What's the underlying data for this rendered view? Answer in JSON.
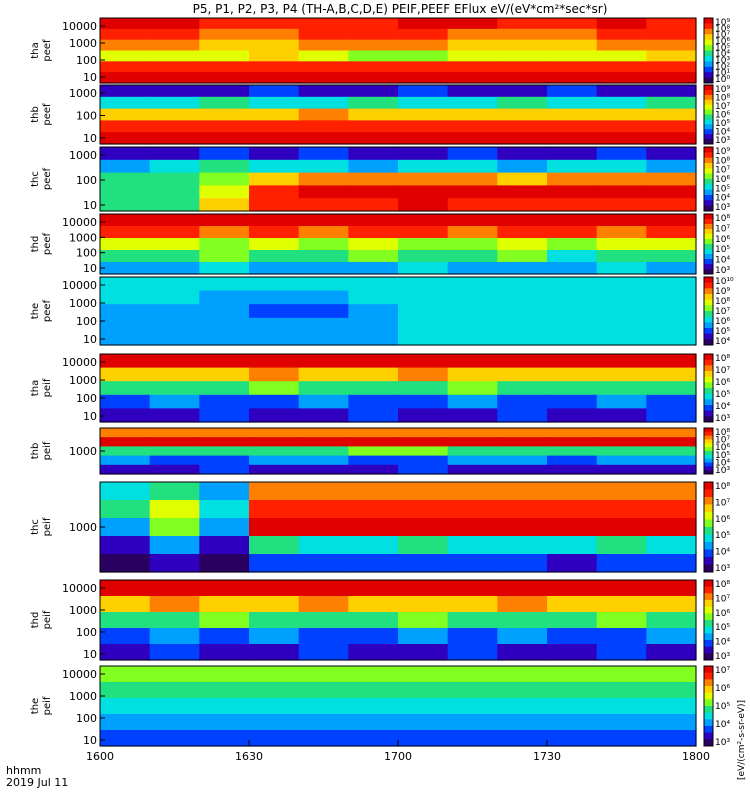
{
  "chart_data": {
    "type": "heatmap",
    "title": "P5, P1, P2, P3, P4 (TH-A,B,C,D,E) PEIF,PEEF EFlux eV/(eV*cm²*sec*sr)",
    "x_ticks": [
      "1600",
      "1630",
      "1700",
      "1730",
      "1800"
    ],
    "x_corner_label": [
      "hhmm",
      "2019 Jul 11"
    ],
    "colorbar_label": "[eV/(cm²-s-sr-eV)]",
    "colorscale": [
      "#2a0060",
      "#3000c0",
      "#0040ff",
      "#00a0ff",
      "#00e0e0",
      "#20e080",
      "#80ff20",
      "#e0ff00",
      "#ffd000",
      "#ff8000",
      "#ff2000",
      "#e00000"
    ],
    "panels": [
      {
        "name": "tha peef",
        "ylabel": [
          "tha",
          "peef"
        ],
        "yticks": [
          "10000",
          "1000",
          "100",
          "10"
        ],
        "cb_ticks": [
          "10⁹",
          "10⁸",
          "10⁷",
          "10⁶",
          "10⁵",
          "10⁴",
          "10³",
          "10²",
          "10¹",
          "10⁰"
        ],
        "grid": [
          [
            11,
            11,
            10,
            10,
            10,
            10,
            11,
            11,
            10,
            10,
            11,
            10
          ],
          [
            10,
            10,
            9,
            9,
            10,
            10,
            10,
            9,
            9,
            9,
            10,
            10
          ],
          [
            9,
            9,
            8,
            8,
            9,
            9,
            9,
            8,
            8,
            8,
            9,
            9
          ],
          [
            7,
            7,
            7,
            8,
            7,
            6,
            6,
            7,
            7,
            7,
            7,
            8
          ],
          [
            10,
            10,
            10,
            10,
            10,
            10,
            10,
            10,
            10,
            10,
            10,
            10
          ],
          [
            11,
            11,
            11,
            11,
            11,
            11,
            11,
            11,
            11,
            11,
            11,
            11
          ]
        ]
      },
      {
        "name": "thb peef",
        "ylabel": [
          "thb",
          "peef"
        ],
        "yticks": [
          "1000",
          "100",
          "10"
        ],
        "cb_ticks": [
          "10⁹",
          "10⁸",
          "10⁷",
          "10⁶",
          "10⁵",
          "10⁴",
          "10³"
        ],
        "grid": [
          [
            1,
            1,
            1,
            2,
            1,
            1,
            2,
            1,
            1,
            2,
            1,
            1
          ],
          [
            4,
            4,
            5,
            4,
            4,
            5,
            4,
            4,
            5,
            4,
            4,
            5
          ],
          [
            8,
            8,
            8,
            8,
            9,
            8,
            8,
            8,
            8,
            8,
            8,
            8
          ],
          [
            10,
            10,
            10,
            10,
            10,
            10,
            10,
            10,
            10,
            10,
            10,
            10
          ],
          [
            11,
            11,
            11,
            11,
            11,
            11,
            11,
            11,
            11,
            11,
            11,
            11
          ]
        ]
      },
      {
        "name": "thc peef",
        "ylabel": [
          "thc",
          "peef"
        ],
        "yticks": [
          "1000",
          "100",
          "10"
        ],
        "cb_ticks": [
          "10⁹",
          "10⁸",
          "10⁷",
          "10⁶",
          "10⁵",
          "10⁴",
          "10³"
        ],
        "grid": [
          [
            1,
            1,
            2,
            1,
            2,
            1,
            1,
            2,
            1,
            1,
            2,
            1
          ],
          [
            3,
            4,
            5,
            4,
            4,
            3,
            4,
            4,
            3,
            4,
            4,
            3
          ],
          [
            5,
            5,
            6,
            8,
            9,
            9,
            9,
            9,
            8,
            9,
            9,
            9
          ],
          [
            5,
            5,
            7,
            10,
            11,
            11,
            11,
            11,
            11,
            11,
            11,
            11
          ],
          [
            5,
            5,
            8,
            10,
            10,
            10,
            11,
            10,
            10,
            10,
            10,
            10
          ]
        ]
      },
      {
        "name": "thd peef",
        "ylabel": [
          "thd",
          "peef"
        ],
        "yticks": [
          "10000",
          "1000",
          "100",
          "10"
        ],
        "cb_ticks": [
          "10⁸",
          "10⁷",
          "10⁶",
          "10⁵",
          "10⁴",
          "10³"
        ],
        "grid": [
          [
            11,
            11,
            11,
            11,
            11,
            11,
            11,
            11,
            11,
            11,
            11,
            11
          ],
          [
            10,
            10,
            9,
            10,
            9,
            10,
            10,
            9,
            10,
            10,
            9,
            10
          ],
          [
            7,
            7,
            6,
            7,
            6,
            7,
            6,
            6,
            7,
            6,
            7,
            7
          ],
          [
            5,
            5,
            6,
            5,
            5,
            6,
            5,
            5,
            6,
            4,
            5,
            5
          ],
          [
            3,
            3,
            4,
            3,
            3,
            3,
            4,
            3,
            3,
            3,
            4,
            3
          ]
        ]
      },
      {
        "name": "the peef",
        "ylabel": [
          "the",
          "peef"
        ],
        "yticks": [
          "10000",
          "1000",
          "100",
          "10"
        ],
        "cb_ticks": [
          "10¹⁰",
          "10⁹",
          "10⁸",
          "10⁷",
          "10⁶",
          "10⁵",
          "10⁴"
        ],
        "grid": [
          [
            4,
            4,
            4,
            4,
            4,
            4,
            4,
            4,
            4,
            4,
            4,
            4
          ],
          [
            4,
            4,
            3,
            3,
            3,
            4,
            4,
            4,
            4,
            4,
            4,
            4
          ],
          [
            3,
            3,
            3,
            2,
            2,
            3,
            4,
            4,
            4,
            4,
            4,
            4
          ],
          [
            3,
            3,
            3,
            3,
            3,
            3,
            4,
            4,
            4,
            4,
            4,
            4
          ],
          [
            3,
            3,
            3,
            3,
            3,
            3,
            4,
            4,
            4,
            4,
            4,
            4
          ]
        ]
      },
      {
        "name": "tha peif",
        "ylabel": [
          "tha",
          "peif"
        ],
        "yticks": [
          "10000",
          "1000",
          "100",
          "10"
        ],
        "cb_ticks": [
          "10⁸",
          "10⁷",
          "10⁶",
          "10⁵",
          "10⁴",
          "10³"
        ],
        "grid": [
          [
            11,
            11,
            11,
            11,
            11,
            11,
            11,
            11,
            11,
            11,
            11,
            11
          ],
          [
            8,
            8,
            8,
            9,
            8,
            8,
            9,
            8,
            8,
            8,
            8,
            8
          ],
          [
            5,
            5,
            5,
            6,
            5,
            5,
            5,
            6,
            5,
            5,
            5,
            5
          ],
          [
            2,
            3,
            2,
            2,
            3,
            2,
            2,
            3,
            2,
            2,
            3,
            2
          ],
          [
            1,
            1,
            2,
            1,
            1,
            2,
            1,
            1,
            2,
            1,
            1,
            2
          ]
        ]
      },
      {
        "name": "thb peif",
        "ylabel": [
          "thb",
          "peif"
        ],
        "yticks": [
          "1000"
        ],
        "cb_ticks": [
          "10⁸",
          "10⁷",
          "10⁶",
          "10⁵",
          "10⁴",
          "10³"
        ],
        "grid": [
          [
            9,
            9,
            9,
            9,
            9,
            9,
            9,
            9,
            9,
            9,
            9,
            9
          ],
          [
            11,
            11,
            11,
            11,
            11,
            11,
            11,
            11,
            11,
            11,
            11,
            11
          ],
          [
            5,
            5,
            5,
            5,
            5,
            6,
            6,
            5,
            5,
            5,
            5,
            5
          ],
          [
            3,
            2,
            2,
            3,
            3,
            2,
            2,
            3,
            3,
            2,
            3,
            3
          ],
          [
            1,
            1,
            2,
            1,
            1,
            1,
            2,
            1,
            1,
            1,
            1,
            1
          ]
        ]
      },
      {
        "name": "thc peif",
        "ylabel": [
          "thc",
          "peif"
        ],
        "yticks": [
          "1000"
        ],
        "cb_ticks": [
          "10⁸",
          "10⁷",
          "10⁶",
          "10⁵",
          "10⁴",
          "10³"
        ],
        "grid": [
          [
            4,
            5,
            3,
            9,
            9,
            9,
            9,
            9,
            9,
            9,
            9,
            9
          ],
          [
            5,
            7,
            4,
            10,
            10,
            10,
            10,
            10,
            10,
            10,
            10,
            10
          ],
          [
            3,
            6,
            3,
            11,
            11,
            11,
            11,
            11,
            11,
            11,
            11,
            11
          ],
          [
            1,
            3,
            1,
            5,
            4,
            4,
            5,
            4,
            4,
            4,
            5,
            4
          ],
          [
            0,
            1,
            0,
            2,
            2,
            2,
            2,
            2,
            2,
            1,
            2,
            2
          ]
        ]
      },
      {
        "name": "thd peif",
        "ylabel": [
          "thd",
          "peif"
        ],
        "yticks": [
          "10000",
          "1000",
          "100",
          "10"
        ],
        "cb_ticks": [
          "10⁸",
          "10⁷",
          "10⁶",
          "10⁵",
          "10⁴",
          "10³"
        ],
        "grid": [
          [
            11,
            11,
            11,
            11,
            11,
            11,
            11,
            11,
            11,
            11,
            11,
            11
          ],
          [
            8,
            9,
            8,
            8,
            9,
            8,
            8,
            8,
            9,
            8,
            8,
            8
          ],
          [
            5,
            5,
            6,
            5,
            5,
            5,
            6,
            5,
            5,
            5,
            6,
            5
          ],
          [
            2,
            3,
            2,
            3,
            2,
            2,
            3,
            2,
            3,
            2,
            2,
            3
          ],
          [
            1,
            2,
            1,
            1,
            2,
            1,
            1,
            2,
            1,
            1,
            2,
            1
          ]
        ]
      },
      {
        "name": "the peif",
        "ylabel": [
          "the",
          "peif"
        ],
        "yticks": [
          "10000",
          "1000",
          "100",
          "10"
        ],
        "cb_ticks": [
          "10⁷",
          "10⁶",
          "10⁵",
          "10⁴",
          "10³"
        ],
        "grid": [
          [
            6,
            6,
            6,
            6,
            6,
            6,
            6,
            6,
            6,
            6,
            6,
            6
          ],
          [
            5,
            5,
            5,
            5,
            5,
            5,
            5,
            5,
            5,
            5,
            5,
            5
          ],
          [
            4,
            4,
            4,
            4,
            4,
            4,
            4,
            4,
            4,
            4,
            4,
            4
          ],
          [
            3,
            3,
            3,
            3,
            3,
            3,
            3,
            3,
            3,
            3,
            3,
            3
          ],
          [
            2,
            2,
            2,
            2,
            2,
            2,
            2,
            2,
            2,
            2,
            2,
            2
          ]
        ]
      }
    ]
  }
}
